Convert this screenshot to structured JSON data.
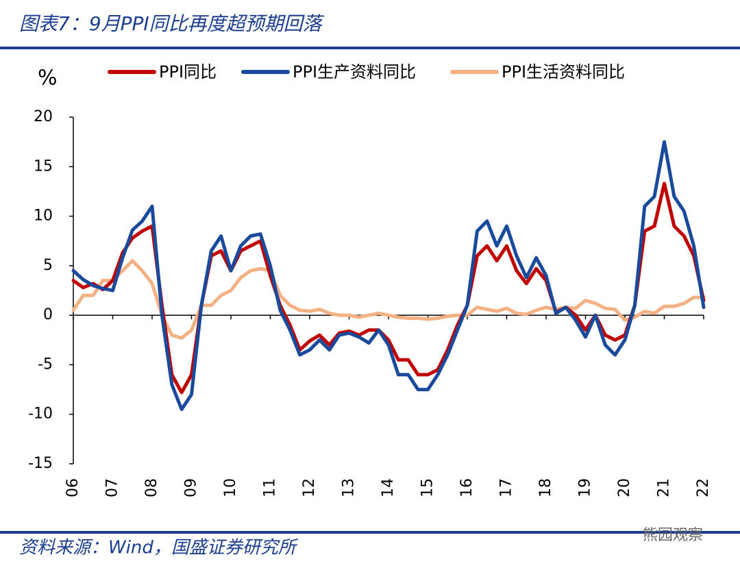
{
  "chart_data": {
    "type": "line",
    "title": "图表7：9月PPI同比再度超预期回落",
    "y_label": "%",
    "source": "资料来源：Wind，国盛证券研究所",
    "watermark": "熊园观察",
    "xlim": [
      2006,
      2022
    ],
    "xticks": [
      {
        "value": 2006,
        "label": "06"
      },
      {
        "value": 2007,
        "label": "07"
      },
      {
        "value": 2008,
        "label": "08"
      },
      {
        "value": 2009,
        "label": "09"
      },
      {
        "value": 2010,
        "label": "10"
      },
      {
        "value": 2011,
        "label": "11"
      },
      {
        "value": 2012,
        "label": "12"
      },
      {
        "value": 2013,
        "label": "13"
      },
      {
        "value": 2014,
        "label": "14"
      },
      {
        "value": 2015,
        "label": "15"
      },
      {
        "value": 2016,
        "label": "16"
      },
      {
        "value": 2017,
        "label": "17"
      },
      {
        "value": 2018,
        "label": "18"
      },
      {
        "value": 2019,
        "label": "19"
      },
      {
        "value": 2020,
        "label": "20"
      },
      {
        "value": 2021,
        "label": "21"
      },
      {
        "value": 2022,
        "label": "22"
      }
    ],
    "ylim": [
      -15,
      20
    ],
    "yticks": [
      -15,
      -10,
      -5,
      0,
      5,
      10,
      15,
      20
    ],
    "x": [
      2006,
      2006.25,
      2006.5,
      2006.75,
      2007,
      2007.25,
      2007.5,
      2007.75,
      2008,
      2008.25,
      2008.5,
      2008.75,
      2009,
      2009.25,
      2009.5,
      2009.75,
      2010,
      2010.25,
      2010.5,
      2010.75,
      2011,
      2011.25,
      2011.5,
      2011.75,
      2012,
      2012.25,
      2012.5,
      2012.75,
      2013,
      2013.25,
      2013.5,
      2013.75,
      2014,
      2014.25,
      2014.5,
      2014.75,
      2015,
      2015.25,
      2015.5,
      2015.75,
      2016,
      2016.25,
      2016.5,
      2016.75,
      2017,
      2017.25,
      2017.5,
      2017.75,
      2018,
      2018.25,
      2018.5,
      2018.75,
      2019,
      2019.25,
      2019.5,
      2019.75,
      2020,
      2020.25,
      2020.5,
      2020.75,
      2021,
      2021.25,
      2021.5,
      2021.75,
      2022
    ],
    "series": [
      {
        "name": "PPI同比",
        "color": "#c00000",
        "values": [
          3.5,
          2.8,
          3.2,
          2.6,
          3.5,
          6.3,
          7.8,
          8.5,
          9,
          1,
          -6,
          -7.8,
          -6,
          1,
          6,
          6.5,
          4.5,
          6.5,
          7,
          7.5,
          4,
          1,
          -1,
          -3.5,
          -2.6,
          -2,
          -3,
          -1.8,
          -1.6,
          -2,
          -1.5,
          -1.5,
          -2.5,
          -4.5,
          -4.5,
          -6,
          -6,
          -5.5,
          -3.5,
          -1,
          1,
          6,
          7,
          5.5,
          7,
          4.5,
          3.2,
          4.7,
          3.5,
          0.3,
          0.8,
          0,
          -1.5,
          0,
          -2,
          -2.5,
          -2,
          1,
          8.5,
          9,
          13.3,
          9,
          8,
          6,
          1.5
        ]
      },
      {
        "name": "PPI生产资料同比",
        "color": "#1a4a9c",
        "values": [
          4.5,
          3.6,
          3,
          2.7,
          2.5,
          5.8,
          8.6,
          9.5,
          11,
          0,
          -7,
          -9.5,
          -8,
          1,
          6.5,
          8,
          4.5,
          7,
          8,
          8.2,
          5,
          0.5,
          -1.5,
          -4,
          -3.5,
          -2.5,
          -3.5,
          -2,
          -1.8,
          -2.2,
          -2.8,
          -1.5,
          -3,
          -6,
          -6,
          -7.5,
          -7.5,
          -6,
          -4,
          -1.5,
          1,
          8.5,
          9.5,
          7,
          9,
          6,
          3.8,
          5.8,
          4,
          0.2,
          0.8,
          -0.5,
          -2.2,
          0,
          -3,
          -4,
          -2.5,
          1,
          11,
          12,
          17.5,
          12,
          10.5,
          7,
          0.8
        ]
      },
      {
        "name": "PPI生活资料同比",
        "color": "#f4b183",
        "values": [
          0.5,
          2,
          2,
          3.5,
          3.5,
          4.5,
          5.5,
          4.5,
          3.2,
          0,
          -2,
          -2.3,
          -1.5,
          1,
          1,
          2,
          2.5,
          3.8,
          4.5,
          4.7,
          4.5,
          2,
          1,
          0.5,
          0.4,
          0.6,
          0.2,
          0,
          0,
          -0.2,
          0,
          0.2,
          0,
          -0.2,
          -0.3,
          -0.3,
          -0.4,
          -0.3,
          -0.1,
          0,
          0,
          0.8,
          0.6,
          0.4,
          0.7,
          0.2,
          0.1,
          0.5,
          0.8,
          0.6,
          0.8,
          0.7,
          1.5,
          1.2,
          0.7,
          0.6,
          -0.5,
          -0.2,
          0.4,
          0.2,
          0.9,
          0.9,
          1.2,
          1.8,
          1.8
        ]
      }
    ]
  }
}
